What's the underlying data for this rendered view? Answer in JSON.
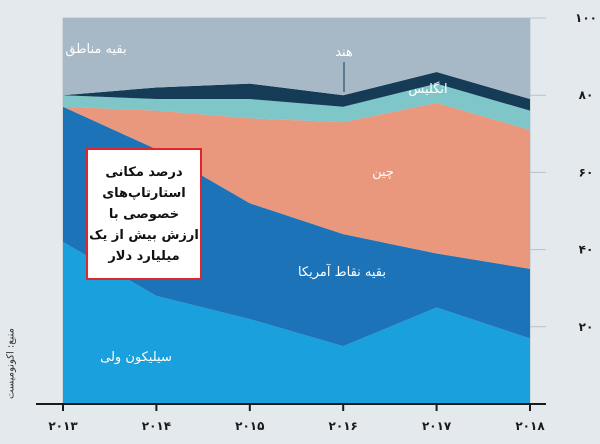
{
  "chart_data": {
    "type": "area",
    "stacked": true,
    "title": "درصد مکانی استارتاپ‌های خصوصی با ارزش بیش از یک میلیارد دلار",
    "x": [
      "۲۰۱۳",
      "۲۰۱۴",
      "۲۰۱۵",
      "۲۰۱۶",
      "۲۰۱۷",
      "۲۰۱۸"
    ],
    "yticks": [
      "۲۰",
      "۴۰",
      "۶۰",
      "۸۰",
      "۱۰۰"
    ],
    "ylim": [
      0,
      100
    ],
    "grid": true,
    "series": [
      {
        "name": "سیلیکون ولی",
        "values": [
          42,
          28,
          22,
          15,
          25,
          17
        ],
        "color": "#1aa0dc"
      },
      {
        "name": "بقیه نقاط آمریکا",
        "values": [
          35,
          38,
          30,
          29,
          14,
          18
        ],
        "color": "#1c73b8"
      },
      {
        "name": "چین",
        "values": [
          0,
          10,
          22,
          29,
          39,
          36
        ],
        "color": "#e9977d"
      },
      {
        "name": "انگلیس",
        "values": [
          3,
          3,
          5,
          4,
          5,
          5
        ],
        "color": "#7ec6c7"
      },
      {
        "name": "هند",
        "values": [
          0,
          3,
          4,
          3,
          3,
          3
        ],
        "color": "#153b57"
      },
      {
        "name": "بقیه مناطق",
        "values": [
          20,
          18,
          17,
          20,
          14,
          21
        ],
        "color": "#a7b9c6"
      }
    ]
  },
  "source": "منبع: اکونومیست"
}
